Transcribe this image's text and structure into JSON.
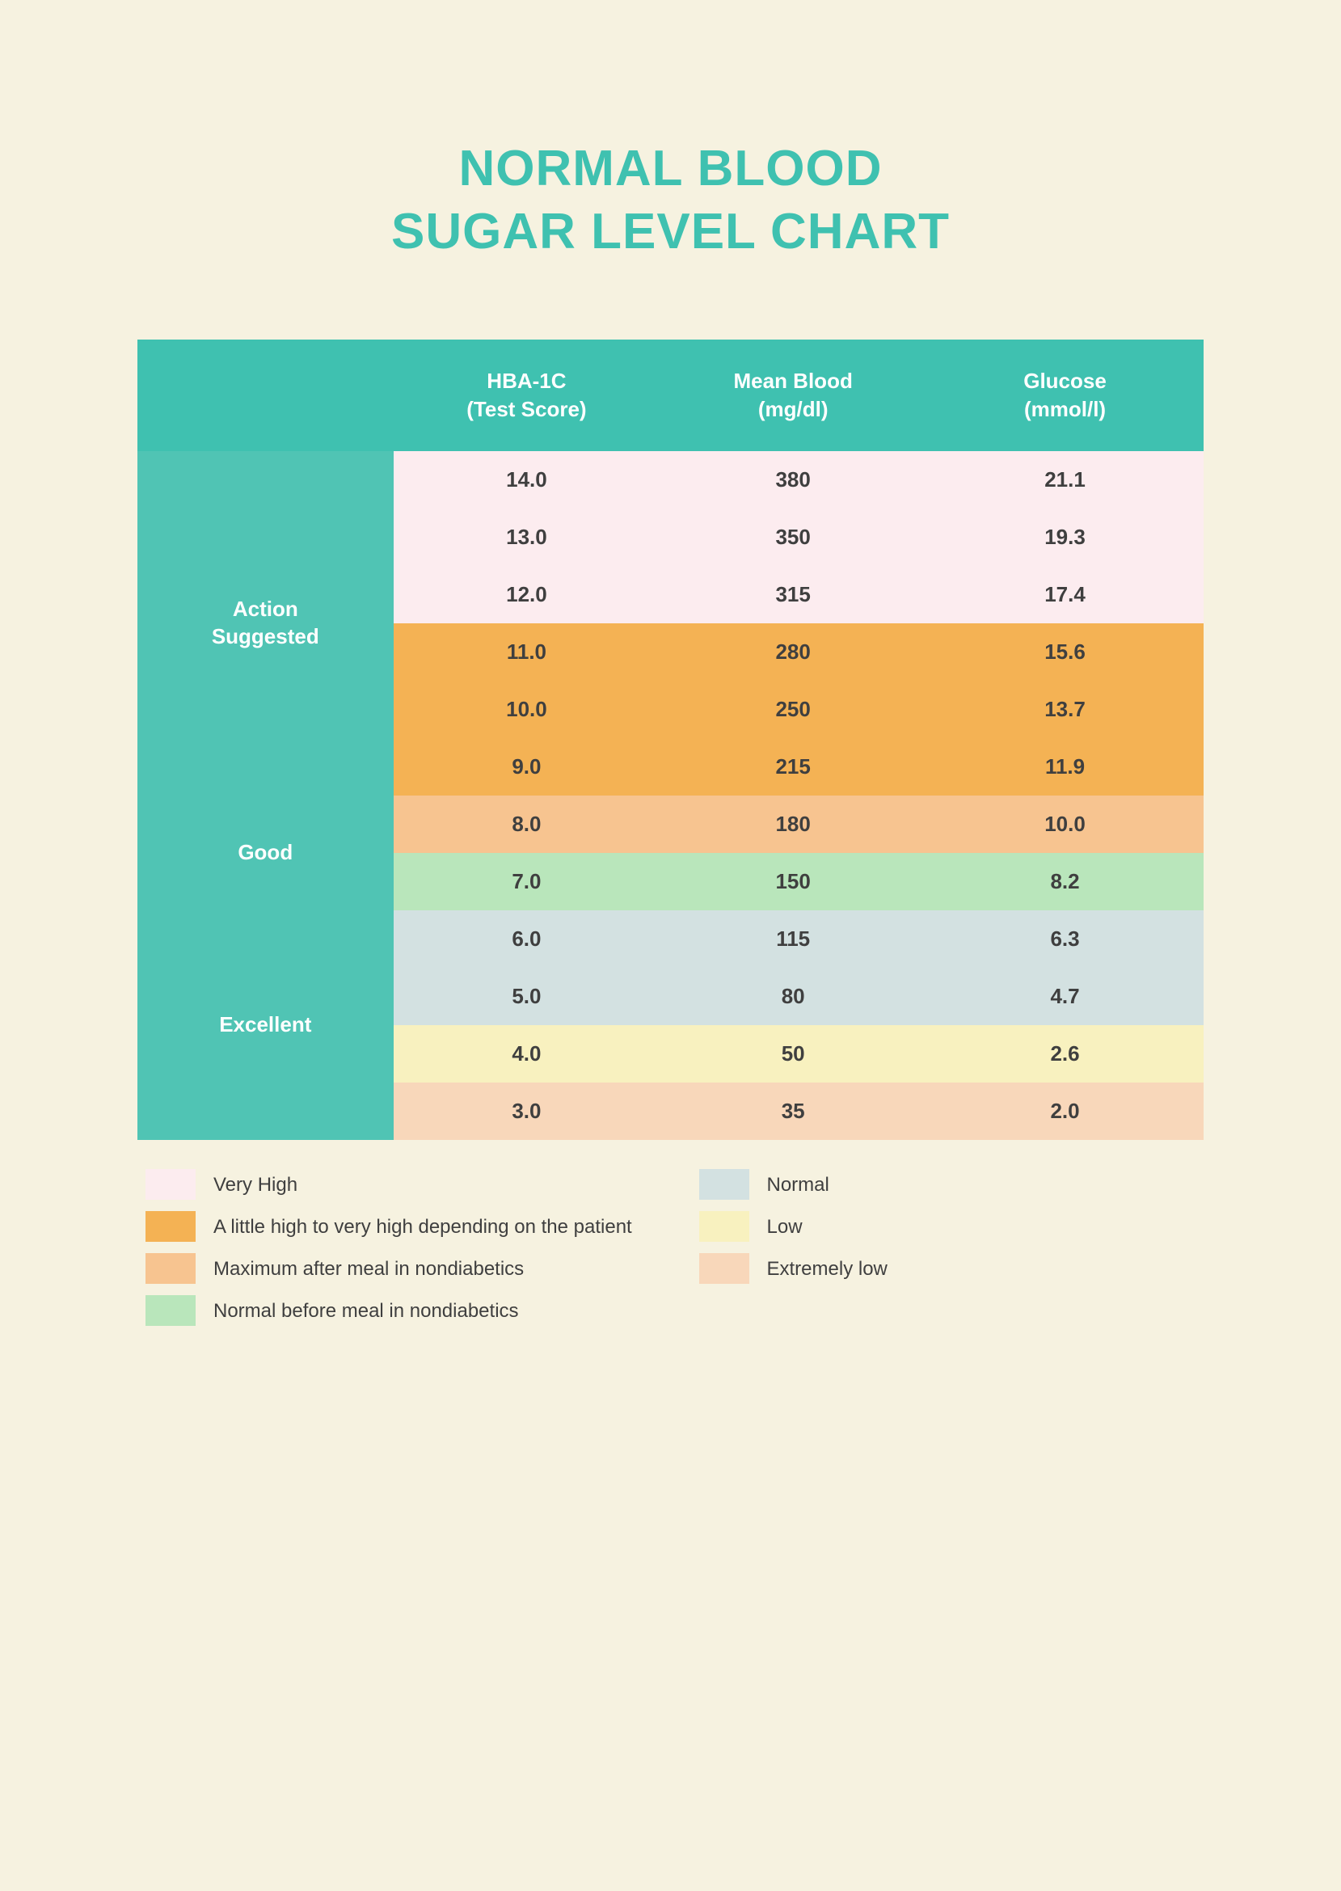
{
  "page": {
    "background_color": "#f6f2e0",
    "title_line1": "NORMAL BLOOD",
    "title_line2": "SUGAR LEVEL CHART",
    "title_color": "#3fc1b0",
    "title_fontsize": 62
  },
  "table": {
    "header_bg": "#3fc1b0",
    "header_text_color": "#ffffff",
    "header_fontsize": 26,
    "category_bg": "#50c4b4",
    "category_text_color": "#ffffff",
    "category_fontsize": 26,
    "data_text_color": "#3f3f3f",
    "data_fontsize": 26,
    "columns": [
      "",
      "HBA-1C\n(Test Score)",
      "Mean Blood\n(mg/dl)",
      "Glucose\n(mmol/l)"
    ],
    "bands": {
      "very_high": "#fcecef",
      "little_high": "#f4b254",
      "max_after": "#f7c490",
      "normal_before": "#b9e6bb",
      "normal": "#d3e1e1",
      "low": "#f8f1bf",
      "extremely_low": "#f8d7ba"
    },
    "sections": [
      {
        "label": "Action\nSuggested",
        "rows": [
          {
            "band": "very_high",
            "hba1c": "14.0",
            "mgdl": "380",
            "mmoll": "21.1"
          },
          {
            "band": "very_high",
            "hba1c": "13.0",
            "mgdl": "350",
            "mmoll": "19.3"
          },
          {
            "band": "very_high",
            "hba1c": "12.0",
            "mgdl": "315",
            "mmoll": "17.4"
          },
          {
            "band": "little_high",
            "hba1c": "11.0",
            "mgdl": "280",
            "mmoll": "15.6"
          },
          {
            "band": "little_high",
            "hba1c": "10.0",
            "mgdl": "250",
            "mmoll": "13.7"
          },
          {
            "band": "little_high",
            "hba1c": "9.0",
            "mgdl": "215",
            "mmoll": "11.9"
          }
        ]
      },
      {
        "label": "Good",
        "rows": [
          {
            "band": "max_after",
            "hba1c": "8.0",
            "mgdl": "180",
            "mmoll": "10.0"
          },
          {
            "band": "normal_before",
            "hba1c": "7.0",
            "mgdl": "150",
            "mmoll": "8.2"
          }
        ]
      },
      {
        "label": "Excellent",
        "rows": [
          {
            "band": "normal",
            "hba1c": "6.0",
            "mgdl": "115",
            "mmoll": "6.3"
          },
          {
            "band": "normal",
            "hba1c": "5.0",
            "mgdl": "80",
            "mmoll": "4.7"
          },
          {
            "band": "low",
            "hba1c": "4.0",
            "mgdl": "50",
            "mmoll": "2.6"
          },
          {
            "band": "extremely_low",
            "hba1c": "3.0",
            "mgdl": "35",
            "mmoll": "2.0"
          }
        ]
      }
    ]
  },
  "legend": {
    "text_color": "#3f3f3f",
    "left": [
      {
        "band": "very_high",
        "label": "Very High"
      },
      {
        "band": "little_high",
        "label": "A little high to very high depending on the patient"
      },
      {
        "band": "max_after",
        "label": "Maximum after meal in nondiabetics"
      },
      {
        "band": "normal_before",
        "label": "Normal before meal in nondiabetics"
      }
    ],
    "right": [
      {
        "band": "normal",
        "label": "Normal"
      },
      {
        "band": "low",
        "label": "Low"
      },
      {
        "band": "extremely_low",
        "label": "Extremely low"
      }
    ]
  }
}
